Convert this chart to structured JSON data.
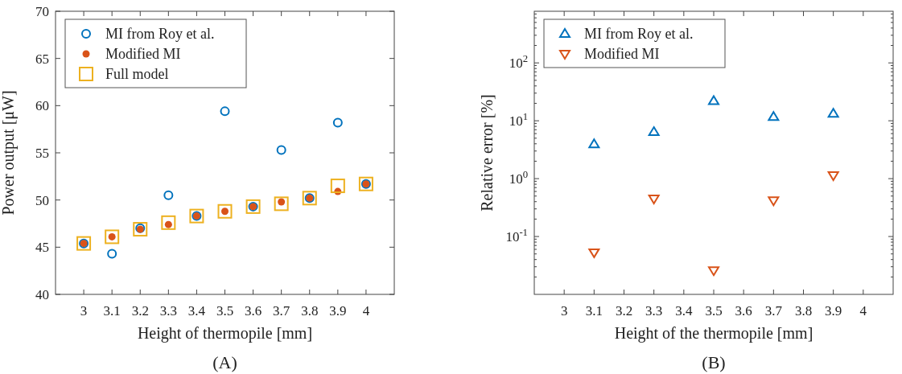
{
  "chart_data": [
    {
      "type": "scatter",
      "xlabel": "Height of thermopile [mm]",
      "ylabel": "Power output [μW]",
      "annotations": [
        "(A)"
      ],
      "x": [
        3,
        3.1,
        3.2,
        3.3,
        3.4,
        3.5,
        3.6,
        3.7,
        3.8,
        3.9,
        4
      ],
      "xlim": [
        2.9,
        4.1
      ],
      "xticks": [
        3,
        3.1,
        3.2,
        3.3,
        3.4,
        3.5,
        3.6,
        3.7,
        3.8,
        3.9,
        4
      ],
      "ylim": [
        40,
        70
      ],
      "yticks": [
        40,
        45,
        50,
        55,
        60,
        65,
        70
      ],
      "legend": "top left",
      "grid": false,
      "series": [
        {
          "name": "MI from Roy et al.",
          "color": "#0072bd",
          "marker": "circle",
          "values": [
            45.4,
            44.3,
            47.0,
            50.5,
            48.3,
            59.4,
            49.3,
            55.3,
            50.2,
            58.2,
            51.7
          ]
        },
        {
          "name": "Modified MI",
          "color": "#d95319",
          "marker": "dot",
          "values": [
            45.4,
            46.1,
            46.9,
            47.4,
            48.3,
            48.8,
            49.3,
            49.8,
            50.2,
            50.9,
            51.7
          ]
        },
        {
          "name": "Full model",
          "color": "#edb120",
          "marker": "square",
          "values": [
            45.4,
            46.1,
            46.9,
            47.6,
            48.3,
            48.8,
            49.3,
            49.6,
            50.2,
            51.5,
            51.7
          ]
        }
      ]
    },
    {
      "type": "scatter",
      "xlabel": "Height of the thermopile [mm]",
      "ylabel": "Relative error [%]",
      "annotations": [
        "(B)"
      ],
      "x": [
        3.1,
        3.3,
        3.5,
        3.7,
        3.9
      ],
      "xlim": [
        2.9,
        4.1
      ],
      "xticks": [
        3,
        3.1,
        3.2,
        3.3,
        3.4,
        3.5,
        3.6,
        3.7,
        3.8,
        3.9,
        4
      ],
      "ylim": [
        0.01,
        780
      ],
      "log": true,
      "yticks": [
        {
          "value": 0.1,
          "label": "10$^{-1}$"
        },
        {
          "value": 1,
          "label": "10$^{0}$"
        },
        {
          "value": 10,
          "label": "10$^{1}$"
        },
        {
          "value": 100,
          "label": "10$^{2}$"
        }
      ],
      "legend": "top left",
      "grid": false,
      "series": [
        {
          "name": "MI from Roy et al.",
          "color": "#0072bd",
          "marker": "triangle",
          "values": [
            3.95,
            6.4,
            22,
            11.7,
            13.3
          ]
        },
        {
          "name": "Modified MI",
          "color": "#d95319",
          "marker": "triangle-down",
          "values": [
            0.053,
            0.45,
            0.026,
            0.42,
            1.14
          ]
        }
      ]
    }
  ]
}
